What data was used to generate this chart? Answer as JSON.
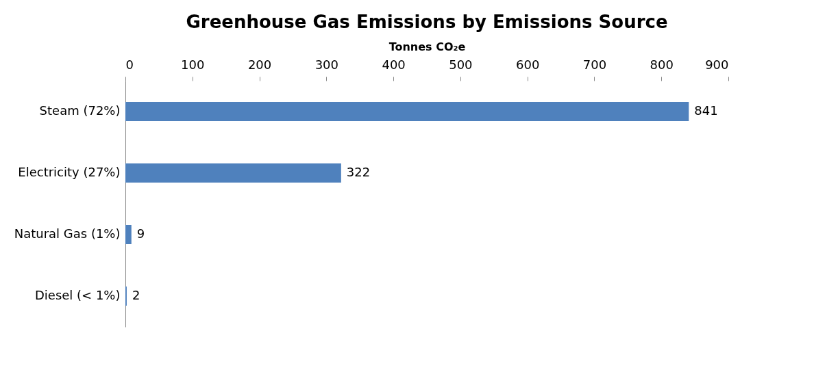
{
  "chart_data": {
    "type": "bar",
    "orientation": "horizontal",
    "title": "Greenhouse Gas Emissions by Emissions Source",
    "xlabel": "Tonnes CO₂e",
    "categories": [
      "Steam (72%)",
      "Electricity (27%)",
      "Natural Gas (1%)",
      "Diesel (< 1%)"
    ],
    "values": [
      841,
      322,
      9,
      2
    ],
    "color": "#4f81bd",
    "xlim": [
      0,
      900
    ],
    "xticks": [
      0,
      100,
      200,
      300,
      400,
      500,
      600,
      700,
      800,
      900
    ],
    "data_labels": true,
    "grid": false
  }
}
